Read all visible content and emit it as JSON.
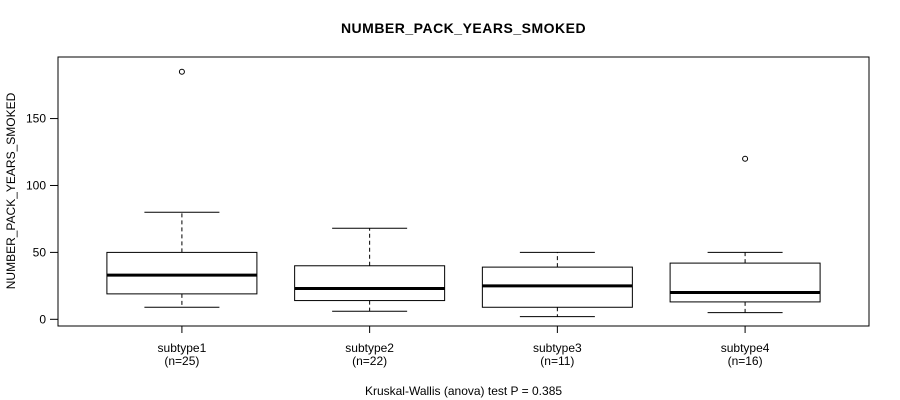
{
  "title": "NUMBER_PACK_YEARS_SMOKED",
  "chart_data": {
    "type": "boxplot",
    "title": "NUMBER_PACK_YEARS_SMOKED",
    "ylabel": "NUMBER_PACK_YEARS_SMOKED",
    "xlabel": "",
    "annotation": "Kruskal-Wallis (anova) test P = 0.385",
    "yticks": [
      0,
      50,
      100,
      150
    ],
    "ylim": [
      -5,
      196
    ],
    "grid": false,
    "legend": false,
    "groups": [
      {
        "label": "subtype1",
        "sublabel": "(n=25)",
        "n": 25,
        "whisker_low": 9,
        "q1": 19,
        "median": 33,
        "q3": 50,
        "whisker_high": 80,
        "outliers": [
          185
        ]
      },
      {
        "label": "subtype2",
        "sublabel": "(n=22)",
        "n": 22,
        "whisker_low": 6,
        "q1": 14,
        "median": 23,
        "q3": 40,
        "whisker_high": 68,
        "outliers": []
      },
      {
        "label": "subtype3",
        "sublabel": "(n=11)",
        "n": 11,
        "whisker_low": 2,
        "q1": 9,
        "median": 25,
        "q3": 39,
        "whisker_high": 50,
        "outliers": []
      },
      {
        "label": "subtype4",
        "sublabel": "(n=16)",
        "n": 16,
        "whisker_low": 5,
        "q1": 13,
        "median": 20,
        "q3": 42,
        "whisker_high": 50,
        "outliers": [
          120
        ]
      }
    ],
    "colors": {
      "stroke": "#000000",
      "box_fill": "#ffffff",
      "background": "#ffffff"
    }
  }
}
